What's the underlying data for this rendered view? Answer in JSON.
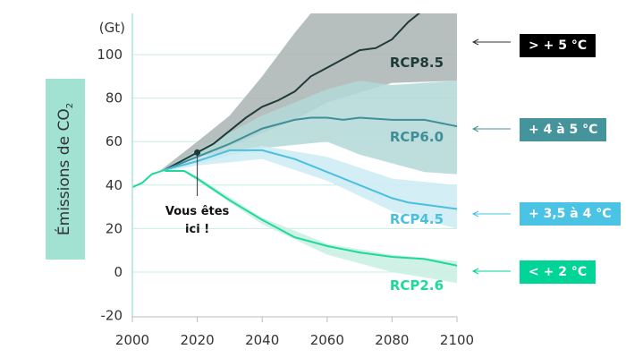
{
  "chart_data": {
    "type": "line",
    "ylabel": "Émissions de CO",
    "ylabel_sub": "2",
    "unit": "(Gt)",
    "xlim": [
      2000,
      2100
    ],
    "ylim": [
      -20,
      119
    ],
    "x_ticks": [
      "2000",
      "2020",
      "2040",
      "2060",
      "2080",
      "2100"
    ],
    "y_ticks": [
      "-20",
      "0",
      "20",
      "40",
      "60",
      "80",
      "100"
    ],
    "grid": true,
    "annotation": {
      "text_line1": "Vous êtes",
      "text_line2": "ici !",
      "x": 2020,
      "y": 55
    },
    "historical": {
      "x": [
        2000,
        2003,
        2006,
        2010
      ],
      "y": [
        39,
        41,
        45,
        47
      ]
    },
    "series": [
      {
        "name": "RCP8.5",
        "color": "#1e3b38",
        "band_color": "#a9b4b2",
        "x": [
          2010,
          2015,
          2020,
          2025,
          2030,
          2035,
          2040,
          2045,
          2050,
          2055,
          2060,
          2065,
          2070,
          2075,
          2080,
          2085,
          2090
        ],
        "y": [
          47,
          51,
          55,
          59,
          65,
          71,
          76,
          79,
          83,
          90,
          94,
          98,
          102,
          103,
          107,
          115,
          121
        ],
        "band_x": [
          2008,
          2020,
          2030,
          2040,
          2050,
          2055,
          2060,
          2080,
          2100
        ],
        "band_upper": [
          46,
          60,
          72,
          90,
          110,
          119,
          119,
          119,
          119
        ],
        "band_lower": [
          46,
          53,
          58,
          64,
          70,
          74,
          78,
          87,
          88
        ],
        "badge": "> + 5 °C",
        "badge_color": "#000000"
      },
      {
        "name": "RCP6.0",
        "color": "#3f8f98",
        "band_color": "#b3d8d8",
        "x": [
          2010,
          2020,
          2030,
          2040,
          2050,
          2055,
          2060,
          2065,
          2070,
          2080,
          2090,
          2100
        ],
        "y": [
          47,
          53,
          59,
          66,
          70,
          71,
          71,
          70,
          71,
          70,
          70,
          67
        ],
        "band_x": [
          2008,
          2020,
          2040,
          2060,
          2070,
          2080,
          2090,
          2100
        ],
        "band_upper": [
          46,
          56,
          72,
          84,
          88,
          86,
          87,
          88
        ],
        "band_lower": [
          46,
          50,
          57,
          60,
          54,
          50,
          46,
          45
        ],
        "badge": "+ 4 à 5 °C",
        "badge_color": "#45939b"
      },
      {
        "name": "RCP4.5",
        "color": "#4bbfe0",
        "band_color": "#cdebf5",
        "x": [
          2010,
          2020,
          2030,
          2035,
          2040,
          2050,
          2060,
          2070,
          2080,
          2085,
          2090,
          2100
        ],
        "y": [
          47,
          51,
          56,
          56,
          56,
          52,
          46,
          40,
          34,
          32,
          31,
          29
        ],
        "band_x": [
          2008,
          2020,
          2040,
          2060,
          2080,
          2100
        ],
        "band_upper": [
          46,
          53,
          58,
          53,
          43,
          40
        ],
        "band_lower": [
          46,
          49,
          52,
          42,
          28,
          20
        ],
        "badge": "+ 3,5 à 4 °C",
        "badge_color": "#4ac3e5"
      },
      {
        "name": "RCP2.6",
        "color": "#1fd99b",
        "band_color": "#c8eee1",
        "x": [
          2010,
          2016,
          2020,
          2030,
          2040,
          2050,
          2060,
          2070,
          2080,
          2090,
          2100
        ],
        "y": [
          46.5,
          46.5,
          43,
          33,
          24,
          16,
          12,
          9,
          7,
          6,
          3
        ],
        "band_x": [
          2016,
          2020,
          2040,
          2060,
          2080,
          2100
        ],
        "band_upper": [
          47,
          44,
          25,
          13,
          8,
          5
        ],
        "band_lower": [
          46,
          42,
          22,
          8,
          0,
          -5
        ],
        "badge": "< + 2 °C",
        "badge_color": "#00d496"
      }
    ]
  }
}
